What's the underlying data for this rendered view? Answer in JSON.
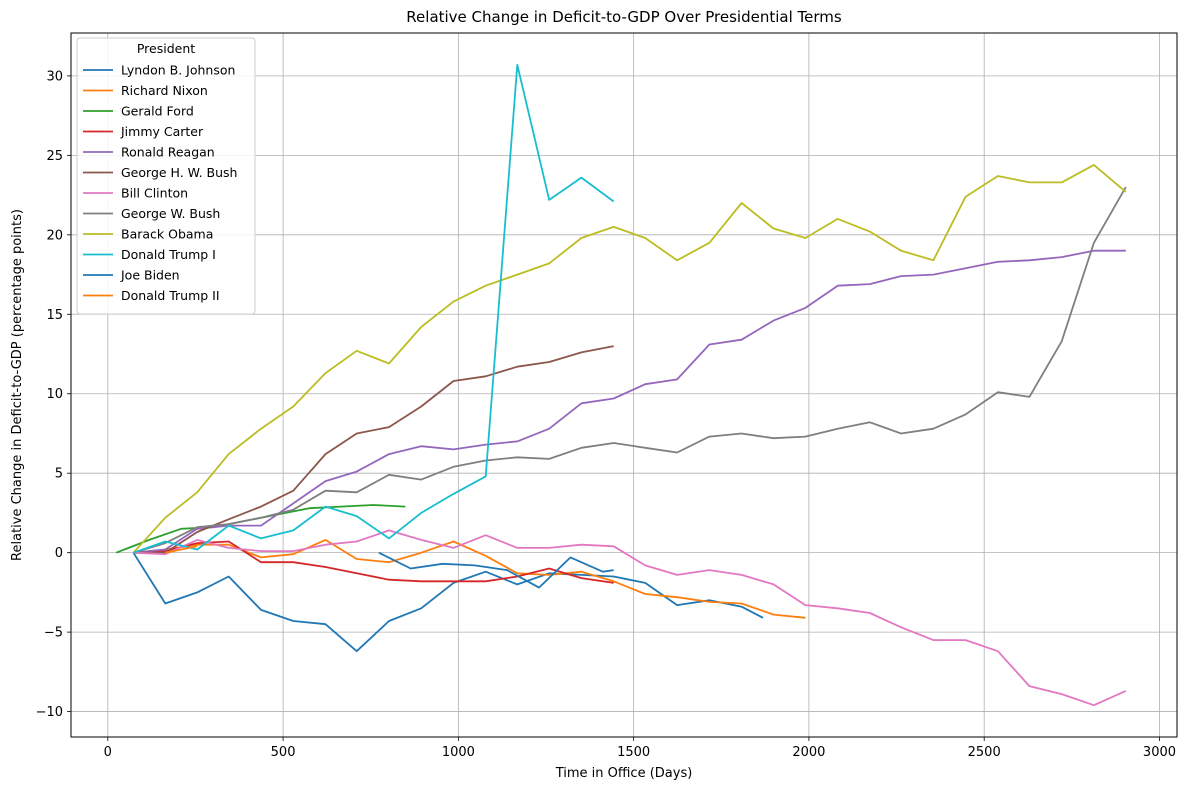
{
  "chart_data": {
    "type": "line",
    "title": "Relative Change in Deficit-to-GDP Over Presidential Terms",
    "xlabel": "Time in Office (Days)",
    "ylabel": "Relative Change in Deficit-to-GDP (percentage points)",
    "xlim": [
      -105,
      3050
    ],
    "ylim": [
      -11.6,
      32.7
    ],
    "xticks": [
      0,
      500,
      1000,
      1500,
      2000,
      2500,
      3000
    ],
    "yticks": [
      -10,
      -5,
      0,
      5,
      10,
      15,
      20,
      25,
      30
    ],
    "grid": true,
    "legend": {
      "title": "President",
      "position": "top-left"
    },
    "series": [
      {
        "name": "Lyndon B. Johnson",
        "color": "#1f77b4",
        "x": [
          73,
          164,
          255,
          345,
          437,
          529,
          621,
          710,
          802,
          894,
          986,
          1078,
          1168,
          1259,
          1351,
          1443,
          1533,
          1624,
          1716,
          1808,
          1869
        ],
        "y": [
          0,
          -3.2,
          -2.5,
          -1.5,
          -3.6,
          -4.3,
          -4.5,
          -6.2,
          -4.3,
          -3.5,
          -1.9,
          -1.2,
          -2.0,
          -1.3,
          -1.4,
          -1.5,
          -1.9,
          -3.3,
          -3.0,
          -3.4,
          -4.1
        ]
      },
      {
        "name": "Richard Nixon",
        "color": "#ff7f0e",
        "x": [
          73,
          164,
          255,
          345,
          437,
          529,
          621,
          710,
          802,
          894,
          986,
          1078,
          1168,
          1259,
          1351,
          1443,
          1533,
          1624,
          1716,
          1808,
          1899,
          1990
        ],
        "y": [
          0,
          0.2,
          0.5,
          0.5,
          -0.3,
          -0.1,
          0.8,
          -0.4,
          -0.6,
          0.0,
          0.7,
          -0.2,
          -1.3,
          -1.4,
          -1.2,
          -1.8,
          -2.6,
          -2.8,
          -3.1,
          -3.2,
          -3.9,
          -4.1
        ]
      },
      {
        "name": "Gerald Ford",
        "color": "#2ca02c",
        "x": [
          24,
          118,
          209,
          300,
          392,
          484,
          575,
          665,
          757,
          849
        ],
        "y": [
          0,
          0.8,
          1.5,
          1.6,
          2.0,
          2.4,
          2.8,
          2.9,
          3.0,
          2.9
        ]
      },
      {
        "name": "Jimmy Carter",
        "color": "#d62728",
        "x": [
          73,
          164,
          255,
          345,
          437,
          529,
          621,
          710,
          802,
          894,
          986,
          1078,
          1168,
          1259,
          1351,
          1443
        ],
        "y": [
          0,
          0.1,
          0.6,
          0.7,
          -0.6,
          -0.6,
          -0.9,
          -1.3,
          -1.7,
          -1.8,
          -1.8,
          -1.8,
          -1.5,
          -1.0,
          -1.6,
          -1.9
        ]
      },
      {
        "name": "Ronald Reagan",
        "color": "#9467bd",
        "x": [
          73,
          164,
          255,
          345,
          437,
          529,
          621,
          710,
          802,
          894,
          986,
          1078,
          1168,
          1259,
          1351,
          1443,
          1533,
          1624,
          1716,
          1808,
          1899,
          1990,
          2082,
          2174,
          2263,
          2355,
          2447,
          2539,
          2629,
          2721,
          2813,
          2904
        ],
        "y": [
          0,
          0.2,
          1.5,
          1.7,
          1.7,
          3.1,
          4.5,
          5.1,
          6.2,
          6.7,
          6.5,
          6.8,
          7.0,
          7.8,
          9.4,
          9.7,
          10.6,
          10.9,
          13.1,
          13.4,
          14.6,
          15.4,
          16.8,
          16.9,
          17.4,
          17.5,
          17.9,
          18.3,
          18.4,
          18.6,
          19.0,
          19.0
        ]
      },
      {
        "name": "George H. W. Bush",
        "color": "#8c564b",
        "x": [
          73,
          164,
          255,
          345,
          437,
          529,
          621,
          710,
          802,
          894,
          986,
          1078,
          1168,
          1259,
          1351,
          1443
        ],
        "y": [
          0,
          0.0,
          1.3,
          2.1,
          2.9,
          3.9,
          6.2,
          7.5,
          7.9,
          9.2,
          10.8,
          11.1,
          11.7,
          12.0,
          12.6,
          13.0
        ]
      },
      {
        "name": "Bill Clinton",
        "color": "#e377c2",
        "x": [
          73,
          164,
          255,
          345,
          437,
          529,
          621,
          710,
          802,
          894,
          986,
          1078,
          1168,
          1259,
          1351,
          1443,
          1533,
          1624,
          1716,
          1808,
          1899,
          1990,
          2082,
          2174,
          2263,
          2355,
          2447,
          2539,
          2629,
          2721,
          2813,
          2904
        ],
        "y": [
          0,
          -0.1,
          0.8,
          0.3,
          0.1,
          0.1,
          0.5,
          0.7,
          1.4,
          0.8,
          0.3,
          1.1,
          0.3,
          0.3,
          0.5,
          0.4,
          -0.8,
          -1.4,
          -1.1,
          -1.4,
          -2.0,
          -3.3,
          -3.5,
          -3.8,
          -4.7,
          -5.5,
          -5.5,
          -6.2,
          -8.4,
          -8.9,
          -9.6,
          -8.7
        ]
      },
      {
        "name": "George W. Bush",
        "color": "#7f7f7f",
        "x": [
          73,
          164,
          255,
          345,
          437,
          529,
          621,
          710,
          802,
          894,
          986,
          1078,
          1168,
          1259,
          1351,
          1443,
          1533,
          1624,
          1716,
          1808,
          1899,
          1990,
          2082,
          2174,
          2263,
          2355,
          2447,
          2539,
          2629,
          2721,
          2813,
          2904
        ],
        "y": [
          0,
          0.6,
          1.6,
          1.8,
          2.2,
          2.7,
          3.9,
          3.8,
          4.9,
          4.6,
          5.4,
          5.8,
          6.0,
          5.9,
          6.6,
          6.9,
          6.6,
          6.3,
          7.3,
          7.5,
          7.2,
          7.3,
          7.8,
          8.2,
          7.5,
          7.8,
          8.7,
          10.1,
          9.8,
          13.3,
          19.5,
          23.0
        ]
      },
      {
        "name": "Barack Obama",
        "color": "#bcbd22",
        "x": [
          73,
          164,
          255,
          345,
          437,
          529,
          621,
          710,
          802,
          894,
          986,
          1078,
          1168,
          1259,
          1351,
          1443,
          1533,
          1624,
          1716,
          1808,
          1899,
          1990,
          2082,
          2174,
          2263,
          2355,
          2447,
          2539,
          2629,
          2721,
          2813,
          2904
        ],
        "y": [
          0,
          2.2,
          3.8,
          6.2,
          7.8,
          9.2,
          11.3,
          12.7,
          11.9,
          14.2,
          15.8,
          16.8,
          17.5,
          18.2,
          19.8,
          20.5,
          19.8,
          18.4,
          19.5,
          22.0,
          20.4,
          19.8,
          21.0,
          20.2,
          19.0,
          18.4,
          22.4,
          23.7,
          23.3,
          23.3,
          24.4,
          22.7
        ]
      },
      {
        "name": "Donald Trump I",
        "color": "#17becf",
        "x": [
          73,
          164,
          255,
          345,
          437,
          529,
          621,
          710,
          802,
          894,
          986,
          1078,
          1168,
          1259,
          1351,
          1443
        ],
        "y": [
          0,
          0.7,
          0.2,
          1.7,
          0.9,
          1.4,
          2.9,
          2.3,
          0.9,
          2.5,
          3.7,
          4.8,
          30.7,
          22.2,
          23.6,
          22.1
        ]
      },
      {
        "name": "Joe Biden",
        "color": "#1f77b4",
        "x": [
          773,
          864,
          955,
          1047,
          1139,
          1230,
          1320,
          1412,
          1443
        ],
        "y": [
          0,
          -1.0,
          -0.7,
          -0.8,
          -1.1,
          -2.2,
          -0.3,
          -1.2,
          -1.1
        ]
      },
      {
        "name": "Donald Trump II",
        "color": "#ff7f0e",
        "x": [
          164,
          255
        ],
        "y": [
          0,
          0.4
        ]
      }
    ]
  }
}
